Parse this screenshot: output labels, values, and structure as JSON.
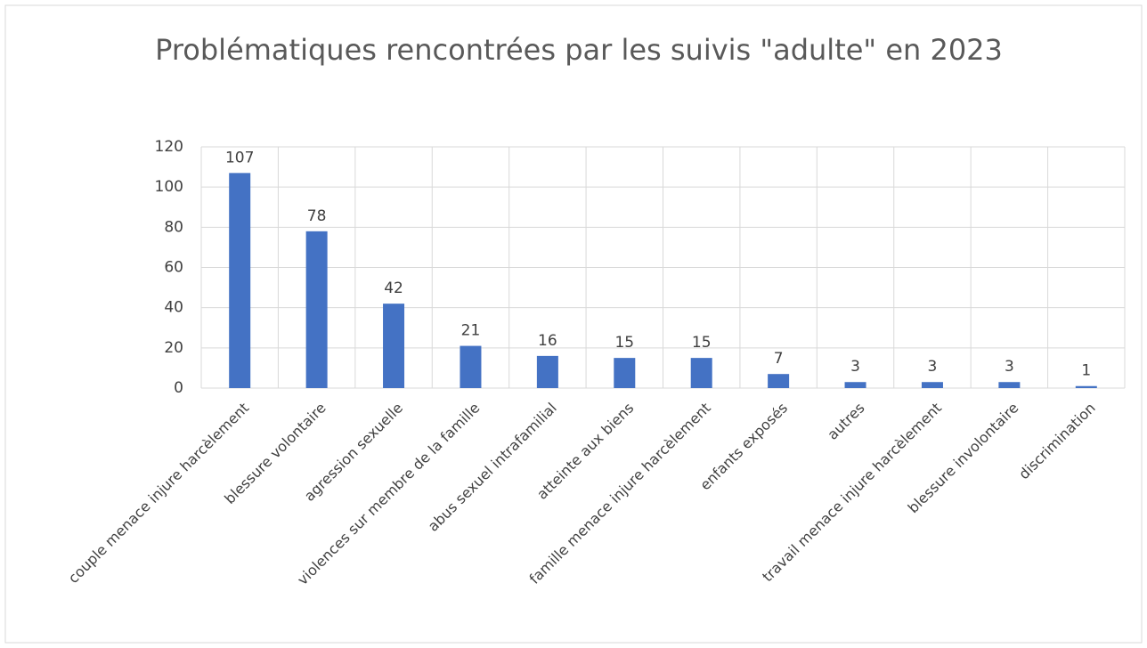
{
  "chart_data": {
    "type": "bar",
    "title": "Problématiques rencontrées par les suivis \"adulte\" en 2023",
    "categories": [
      "couple menace injure harcèlement",
      "blessure volontaire",
      "agression sexuelle",
      "violences sur membre de la famille",
      "abus sexuel intrafamilial",
      "atteinte aux biens",
      "famille menace injure harcèlement",
      "enfants exposés",
      "autres",
      "travail menace injure harcèlement",
      "blessure involontaire",
      "discrimination"
    ],
    "values": [
      107,
      78,
      42,
      21,
      16,
      15,
      15,
      7,
      3,
      3,
      3,
      1
    ],
    "color": "#4472c4",
    "ylim": [
      0,
      120
    ],
    "yticks": [
      0,
      20,
      40,
      60,
      80,
      100,
      120
    ],
    "grid": true
  }
}
